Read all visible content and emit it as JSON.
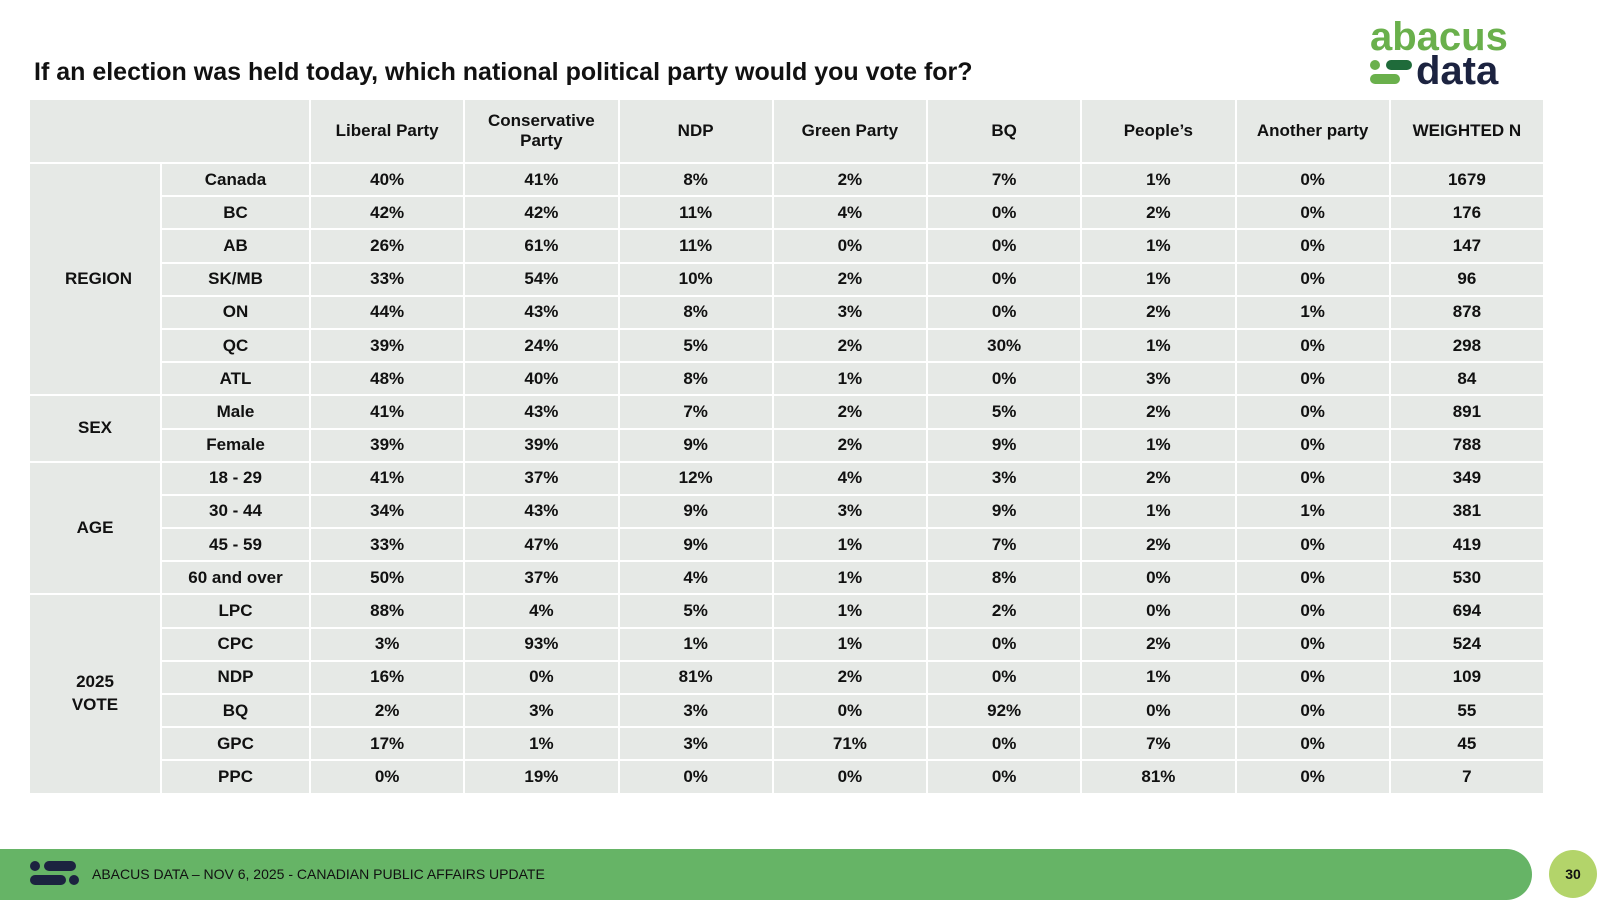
{
  "logo": {
    "top": "abacus",
    "bottom": "data"
  },
  "title": "If an election was held today, which national political party would you vote for?",
  "table": {
    "columns": [
      "Liberal Party",
      "Conservative Party",
      "NDP",
      "Green Party",
      "BQ",
      "People’s",
      "Another party",
      "WEIGHTED N"
    ],
    "groups": [
      {
        "label": "REGION",
        "rows": [
          {
            "label": "Canada",
            "cells": [
              "40%",
              "41%",
              "8%",
              "2%",
              "7%",
              "1%",
              "0%",
              "1679"
            ]
          },
          {
            "label": "BC",
            "cells": [
              "42%",
              "42%",
              "11%",
              "4%",
              "0%",
              "2%",
              "0%",
              "176"
            ]
          },
          {
            "label": "AB",
            "cells": [
              "26%",
              "61%",
              "11%",
              "0%",
              "0%",
              "1%",
              "0%",
              "147"
            ]
          },
          {
            "label": "SK/MB",
            "cells": [
              "33%",
              "54%",
              "10%",
              "2%",
              "0%",
              "1%",
              "0%",
              "96"
            ]
          },
          {
            "label": "ON",
            "cells": [
              "44%",
              "43%",
              "8%",
              "3%",
              "0%",
              "2%",
              "1%",
              "878"
            ]
          },
          {
            "label": "QC",
            "cells": [
              "39%",
              "24%",
              "5%",
              "2%",
              "30%",
              "1%",
              "0%",
              "298"
            ]
          },
          {
            "label": "ATL",
            "cells": [
              "48%",
              "40%",
              "8%",
              "1%",
              "0%",
              "3%",
              "0%",
              "84"
            ]
          }
        ]
      },
      {
        "label": "SEX",
        "rows": [
          {
            "label": "Male",
            "cells": [
              "41%",
              "43%",
              "7%",
              "2%",
              "5%",
              "2%",
              "0%",
              "891"
            ]
          },
          {
            "label": "Female",
            "cells": [
              "39%",
              "39%",
              "9%",
              "2%",
              "9%",
              "1%",
              "0%",
              "788"
            ]
          }
        ]
      },
      {
        "label": "AGE",
        "rows": [
          {
            "label": "18 - 29",
            "cells": [
              "41%",
              "37%",
              "12%",
              "4%",
              "3%",
              "2%",
              "0%",
              "349"
            ]
          },
          {
            "label": "30 - 44",
            "cells": [
              "34%",
              "43%",
              "9%",
              "3%",
              "9%",
              "1%",
              "1%",
              "381"
            ]
          },
          {
            "label": "45 - 59",
            "cells": [
              "33%",
              "47%",
              "9%",
              "1%",
              "7%",
              "2%",
              "0%",
              "419"
            ]
          },
          {
            "label": "60 and over",
            "cells": [
              "50%",
              "37%",
              "4%",
              "1%",
              "8%",
              "0%",
              "0%",
              "530"
            ]
          }
        ]
      },
      {
        "label": "2025 VOTE",
        "rows": [
          {
            "label": "LPC",
            "cells": [
              "88%",
              "4%",
              "5%",
              "1%",
              "2%",
              "0%",
              "0%",
              "694"
            ]
          },
          {
            "label": "CPC",
            "cells": [
              "3%",
              "93%",
              "1%",
              "1%",
              "0%",
              "2%",
              "0%",
              "524"
            ]
          },
          {
            "label": "NDP",
            "cells": [
              "16%",
              "0%",
              "81%",
              "2%",
              "0%",
              "1%",
              "0%",
              "109"
            ]
          },
          {
            "label": "BQ",
            "cells": [
              "2%",
              "3%",
              "3%",
              "0%",
              "92%",
              "0%",
              "0%",
              "55"
            ]
          },
          {
            "label": "GPC",
            "cells": [
              "17%",
              "1%",
              "3%",
              "71%",
              "0%",
              "7%",
              "0%",
              "45"
            ]
          },
          {
            "label": "PPC",
            "cells": [
              "0%",
              "19%",
              "0%",
              "0%",
              "0%",
              "81%",
              "0%",
              "7"
            ]
          }
        ]
      }
    ]
  },
  "footer": {
    "text": "ABACUS DATA – NOV 6, 2025 - CANADIAN PUBLIC AFFAIRS UPDATE",
    "page": "30"
  }
}
